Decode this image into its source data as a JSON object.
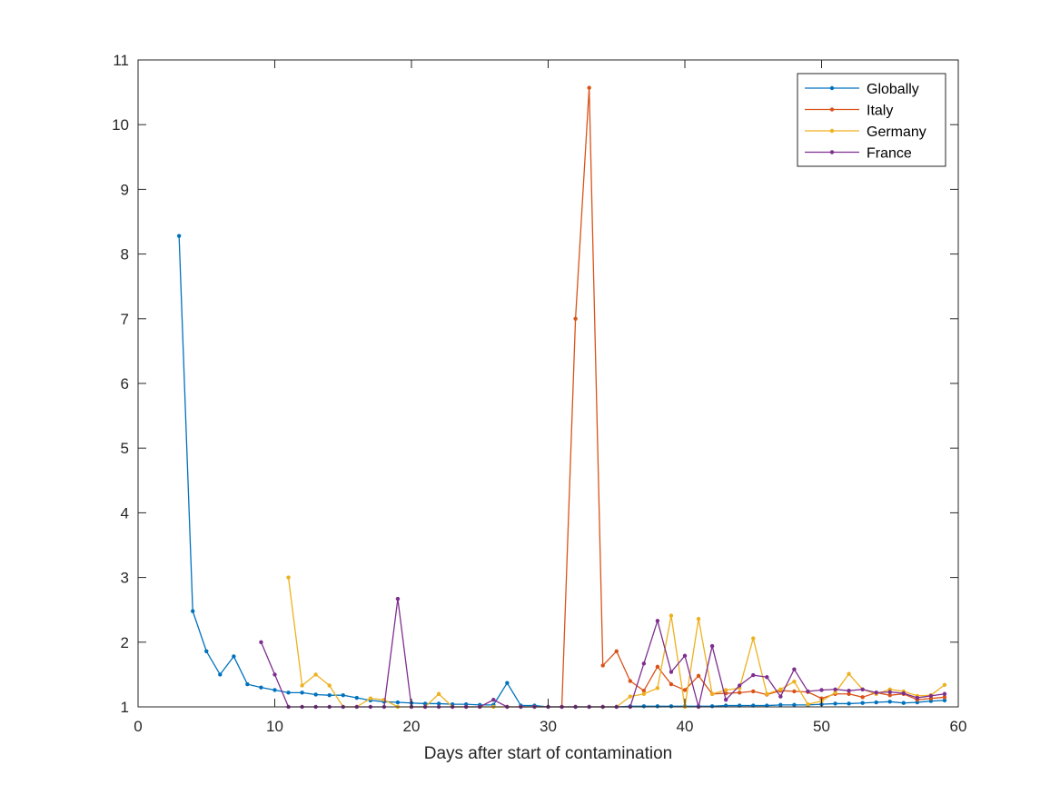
{
  "chart_data": {
    "type": "line",
    "xlabel": "Days after start of contamination",
    "ylabel": "",
    "title": "",
    "xlim": [
      0,
      60
    ],
    "ylim": [
      1,
      11
    ],
    "xticks": [
      0,
      10,
      20,
      30,
      40,
      50,
      60
    ],
    "yticks": [
      1,
      2,
      3,
      4,
      5,
      6,
      7,
      8,
      9,
      10,
      11
    ],
    "grid": false,
    "legend_position": "top-right",
    "series": [
      {
        "name": "Globally",
        "color": "#0072BD",
        "x": [
          3,
          4,
          5,
          6,
          7,
          8,
          9,
          10,
          11,
          12,
          13,
          14,
          15,
          16,
          17,
          18,
          19,
          20,
          21,
          22,
          23,
          24,
          25,
          26,
          27,
          28,
          29,
          30,
          31,
          32,
          33,
          34,
          35,
          36,
          37,
          38,
          39,
          40,
          41,
          42,
          43,
          44,
          45,
          46,
          47,
          48,
          49,
          50,
          51,
          52,
          53,
          54,
          55,
          56,
          57,
          58,
          59
        ],
        "values": [
          8.28,
          2.48,
          1.86,
          1.5,
          1.78,
          1.35,
          1.3,
          1.26,
          1.22,
          1.22,
          1.19,
          1.18,
          1.18,
          1.14,
          1.1,
          1.08,
          1.07,
          1.06,
          1.05,
          1.05,
          1.04,
          1.04,
          1.03,
          1.03,
          1.37,
          1.02,
          1.02,
          1.0,
          1.0,
          1.0,
          1.0,
          1.0,
          1.0,
          1.01,
          1.01,
          1.01,
          1.01,
          1.01,
          1.01,
          1.01,
          1.02,
          1.02,
          1.02,
          1.02,
          1.03,
          1.03,
          1.03,
          1.04,
          1.05,
          1.05,
          1.06,
          1.07,
          1.08,
          1.06,
          1.07,
          1.09,
          1.1
        ]
      },
      {
        "name": "Italy",
        "color": "#D95319",
        "x": [
          31,
          32,
          33,
          34,
          35,
          36,
          37,
          38,
          39,
          40,
          41,
          42,
          43,
          44,
          45,
          46,
          47,
          48,
          49,
          50,
          51,
          52,
          53,
          54,
          55,
          56,
          57,
          58,
          59
        ],
        "values": [
          1.0,
          7.0,
          10.57,
          1.64,
          1.86,
          1.4,
          1.25,
          1.62,
          1.35,
          1.26,
          1.48,
          1.2,
          1.21,
          1.22,
          1.24,
          1.19,
          1.25,
          1.24,
          1.23,
          1.13,
          1.2,
          1.2,
          1.15,
          1.22,
          1.18,
          1.2,
          1.11,
          1.13,
          1.15
        ]
      },
      {
        "name": "Germany",
        "color": "#EDB120",
        "x": [
          11,
          12,
          13,
          14,
          15,
          16,
          17,
          18,
          19,
          20,
          21,
          22,
          23,
          24,
          25,
          26,
          27,
          28,
          29,
          30,
          31,
          32,
          33,
          34,
          35,
          36,
          37,
          38,
          39,
          40,
          41,
          42,
          43,
          44,
          45,
          46,
          47,
          48,
          49,
          50,
          51,
          52,
          53,
          54,
          55,
          56,
          57,
          58,
          59
        ],
        "values": [
          3.0,
          1.33,
          1.5,
          1.33,
          1.0,
          1.0,
          1.13,
          1.11,
          1.0,
          1.0,
          1.0,
          1.2,
          1.0,
          1.0,
          1.0,
          1.0,
          1.0,
          1.0,
          1.0,
          1.0,
          1.0,
          1.0,
          1.0,
          1.0,
          1.0,
          1.16,
          1.2,
          1.29,
          2.41,
          1.0,
          2.36,
          1.2,
          1.26,
          1.29,
          2.06,
          1.2,
          1.27,
          1.39,
          1.04,
          1.09,
          1.22,
          1.51,
          1.27,
          1.2,
          1.27,
          1.24,
          1.17,
          1.18,
          1.34
        ]
      },
      {
        "name": "France",
        "color": "#7E2F8E",
        "x": [
          9,
          10,
          11,
          12,
          13,
          14,
          15,
          16,
          17,
          18,
          19,
          20,
          21,
          22,
          23,
          24,
          25,
          26,
          27,
          28,
          29,
          30,
          31,
          32,
          33,
          34,
          35,
          36,
          37,
          38,
          39,
          40,
          41,
          42,
          43,
          44,
          45,
          46,
          47,
          48,
          49,
          50,
          51,
          52,
          53,
          54,
          55,
          56,
          57,
          58,
          59
        ],
        "values": [
          2.0,
          1.5,
          1.0,
          1.0,
          1.0,
          1.0,
          1.0,
          1.0,
          1.0,
          1.0,
          2.67,
          1.0,
          1.0,
          1.0,
          1.0,
          1.0,
          1.0,
          1.11,
          1.0,
          1.0,
          1.0,
          1.0,
          1.0,
          1.0,
          1.0,
          1.0,
          1.0,
          1.0,
          1.67,
          2.33,
          1.54,
          1.79,
          1.0,
          1.94,
          1.11,
          1.33,
          1.49,
          1.46,
          1.16,
          1.58,
          1.24,
          1.26,
          1.27,
          1.25,
          1.27,
          1.22,
          1.23,
          1.21,
          1.14,
          1.17,
          1.2
        ]
      }
    ]
  }
}
